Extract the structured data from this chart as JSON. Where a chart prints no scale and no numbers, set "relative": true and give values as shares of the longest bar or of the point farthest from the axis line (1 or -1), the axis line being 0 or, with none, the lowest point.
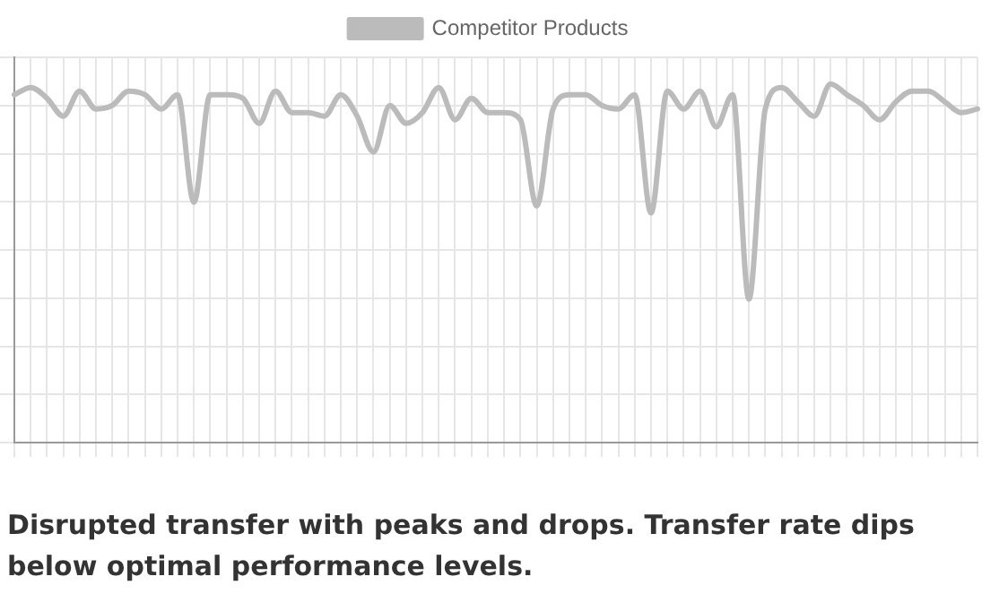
{
  "chart_data": {
    "type": "line",
    "relative": true,
    "categories": [
      null,
      null,
      null,
      null,
      null,
      null,
      null,
      null,
      null,
      null,
      null,
      null,
      null,
      null,
      null,
      null,
      null,
      null,
      null,
      null,
      null,
      null,
      null,
      null,
      null,
      null,
      null,
      null,
      null,
      null,
      null,
      null,
      null,
      null,
      null,
      null,
      null,
      null,
      null,
      null,
      null,
      null,
      null,
      null,
      null,
      null,
      null,
      null,
      null,
      null,
      null,
      null,
      null,
      null,
      null,
      null,
      null,
      null,
      null,
      null
    ],
    "series": [
      {
        "name": "Competitor Products",
        "color": "#bbbbbb",
        "values": [
          0.97,
          0.99,
          0.96,
          0.91,
          0.98,
          0.93,
          0.94,
          0.98,
          0.97,
          0.93,
          0.97,
          0.67,
          0.97,
          0.97,
          0.96,
          0.89,
          0.98,
          0.92,
          0.92,
          0.91,
          0.97,
          0.91,
          0.81,
          0.94,
          0.89,
          0.92,
          0.99,
          0.9,
          0.96,
          0.92,
          0.92,
          0.9,
          0.66,
          0.93,
          0.97,
          0.97,
          0.94,
          0.93,
          0.97,
          0.64,
          0.98,
          0.93,
          0.98,
          0.88,
          0.97,
          0.4,
          0.93,
          0.99,
          0.95,
          0.91,
          1,
          0.97,
          0.94,
          0.9,
          0.95,
          0.98,
          0.98,
          0.95,
          0.92,
          0.93
        ]
      }
    ],
    "legend": "top",
    "grid": true,
    "marker": "none",
    "tick_labels": false,
    "annotations": [
      "Disrupted transfer with peaks and drops. Transfer rate dips below optimal performance levels."
    ]
  }
}
